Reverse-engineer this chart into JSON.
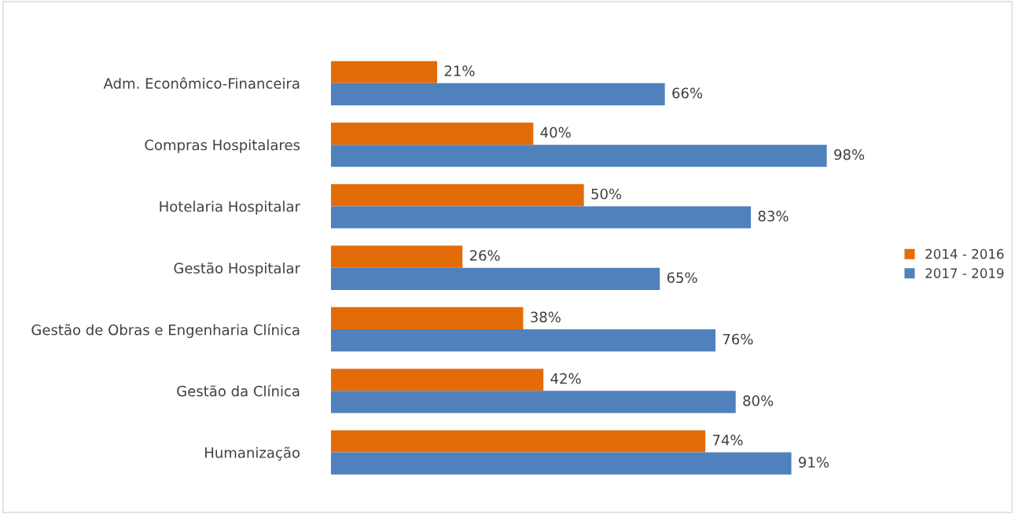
{
  "chart_data": {
    "type": "bar",
    "orientation": "horizontal",
    "categories": [
      "Adm. Econômico-Financeira",
      "Compras Hospitalares",
      "Hotelaria Hospitalar",
      "Gestão Hospitalar",
      "Gestão de Obras e Engenharia Clínica",
      "Gestão da Clínica",
      "Humanização"
    ],
    "series": [
      {
        "name": "2014 - 2016",
        "color": "#e36c09",
        "values": [
          21,
          40,
          50,
          26,
          38,
          42,
          74
        ],
        "value_labels": [
          "21%",
          "40%",
          "50%",
          "26%",
          "38%",
          "42%",
          "74%"
        ]
      },
      {
        "name": "2017 - 2019",
        "color": "#4f81bd",
        "values": [
          66,
          98,
          83,
          65,
          76,
          80,
          91
        ],
        "value_labels": [
          "66%",
          "98%",
          "83%",
          "65%",
          "76%",
          "80%",
          "91%"
        ]
      }
    ],
    "tick_labels": "y",
    "grid": false,
    "legend": "right"
  }
}
